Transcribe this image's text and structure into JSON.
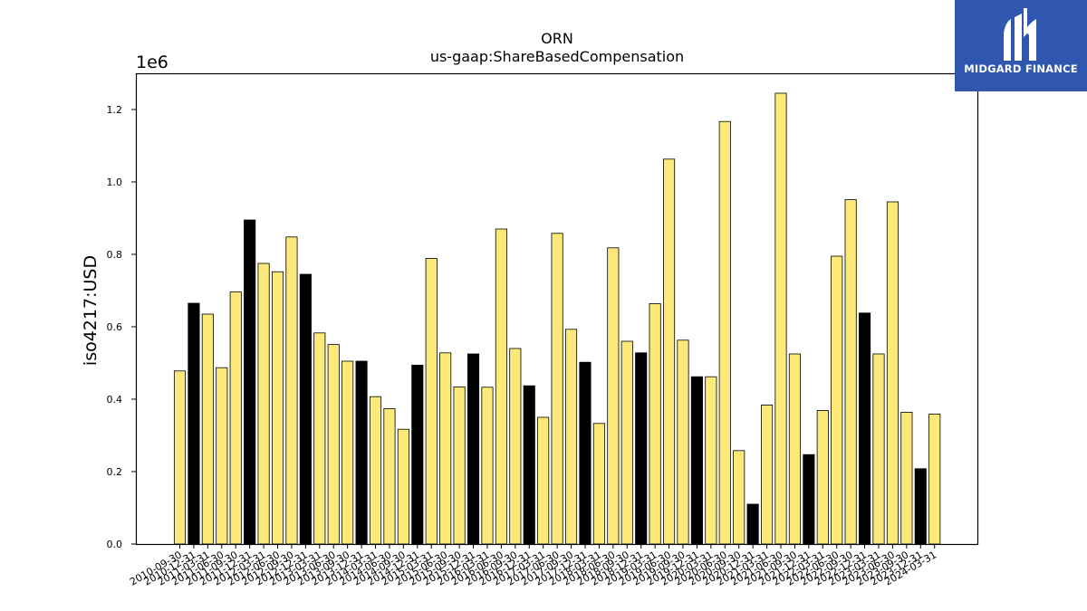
{
  "chart_data": {
    "type": "bar",
    "title": "ORN",
    "subtitle": "us-gaap:ShareBasedCompensation",
    "ylabel": "iso4217:USD",
    "xlabel": "",
    "y_scale_label": "1e6",
    "ylim": [
      0,
      1300000
    ],
    "yticks": [
      0,
      200000,
      400000,
      600000,
      800000,
      1000000,
      1200000
    ],
    "ytick_labels": [
      "0.0",
      "0.2",
      "0.4",
      "0.6",
      "0.8",
      "1.0",
      "1.2"
    ],
    "colors": {
      "default": "#fce97a",
      "highlight": "#000000",
      "edge": "#000000"
    },
    "categories": [
      "2010-09-30",
      "2010-12-31",
      "2011-03-31",
      "2011-06-30",
      "2011-09-30",
      "2011-12-31",
      "2012-03-31",
      "2012-06-30",
      "2012-09-30",
      "2012-12-31",
      "2013-03-31",
      "2013-06-30",
      "2013-09-30",
      "2013-12-31",
      "2014-03-31",
      "2014-06-30",
      "2014-09-30",
      "2014-12-31",
      "2015-03-31",
      "2015-06-30",
      "2015-09-30",
      "2015-12-31",
      "2016-03-31",
      "2016-06-30",
      "2016-09-30",
      "2016-12-31",
      "2017-03-31",
      "2017-06-30",
      "2017-09-30",
      "2017-12-31",
      "2018-03-31",
      "2018-06-30",
      "2018-09-30",
      "2018-12-31",
      "2019-03-31",
      "2019-06-30",
      "2019-09-30",
      "2019-12-31",
      "2020-03-31",
      "2020-06-30",
      "2020-09-30",
      "2020-12-31",
      "2021-03-31",
      "2021-06-30",
      "2021-09-30",
      "2021-12-31",
      "2022-03-31",
      "2022-06-30",
      "2022-09-30",
      "2022-12-31",
      "2023-03-31",
      "2023-06-30",
      "2023-09-30",
      "2023-12-31",
      "2024-03-31"
    ],
    "values": [
      478000,
      665000,
      635000,
      487000,
      696000,
      895000,
      775000,
      752000,
      848000,
      745000,
      583000,
      551000,
      505000,
      505000,
      407000,
      374000,
      317000,
      494000,
      789000,
      528000,
      434000,
      525000,
      433000,
      870000,
      540000,
      437000,
      350000,
      858000,
      593000,
      502000,
      333000,
      818000,
      560000,
      528000,
      664000,
      1063000,
      563000,
      462000,
      462000,
      1167000,
      258000,
      110000,
      384000,
      1245000,
      525000,
      247000,
      369000,
      795000,
      951000,
      638000,
      525000,
      945000,
      364000,
      208000,
      359000
    ],
    "highlight": [
      false,
      true,
      false,
      false,
      false,
      true,
      false,
      false,
      false,
      true,
      false,
      false,
      false,
      true,
      false,
      false,
      false,
      true,
      false,
      false,
      false,
      true,
      false,
      false,
      false,
      true,
      false,
      false,
      false,
      true,
      false,
      false,
      false,
      true,
      false,
      false,
      false,
      true,
      false,
      false,
      false,
      true,
      false,
      false,
      false,
      true,
      false,
      false,
      false,
      true,
      false,
      false,
      false,
      true,
      false
    ]
  },
  "logo": {
    "text": "MIDGARD FINANCE"
  }
}
